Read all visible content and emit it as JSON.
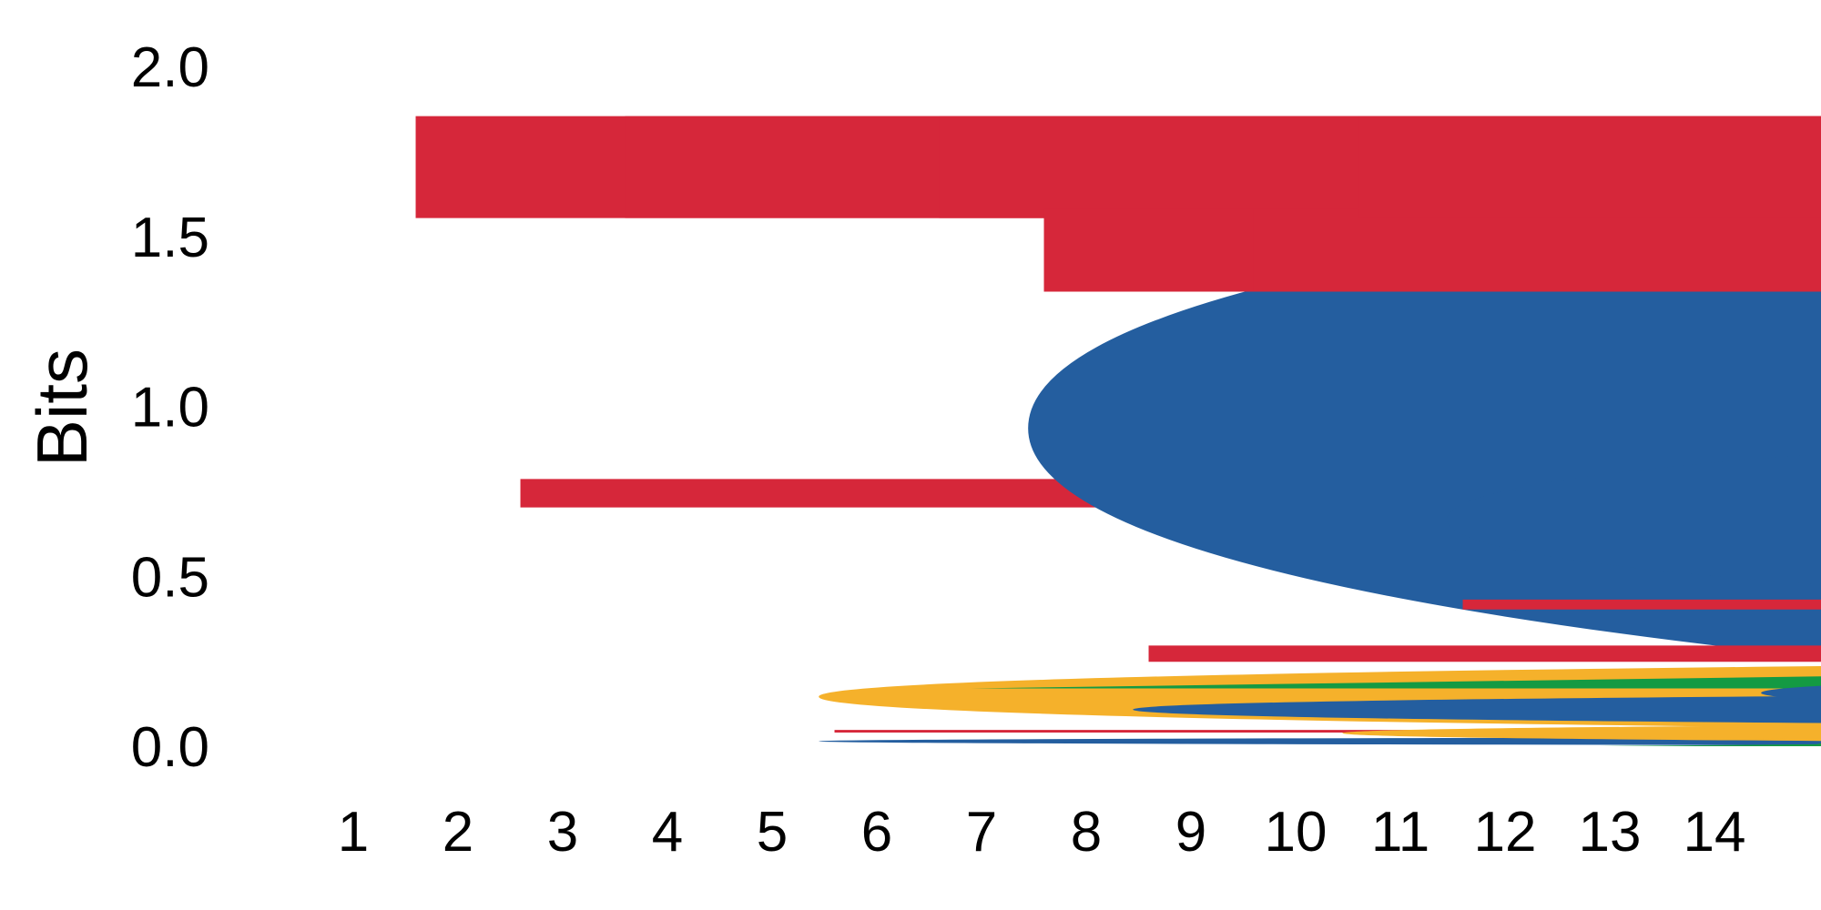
{
  "chart_data": {
    "type": "sequence-logo",
    "ylabel": "Bits",
    "xlabel": "",
    "ylim": [
      0,
      2
    ],
    "y_ticks": [
      "0.0",
      "0.5",
      "1.0",
      "1.5",
      "2.0"
    ],
    "y_tick_values": [
      0,
      0.5,
      1.0,
      1.5,
      2.0
    ],
    "grid": false,
    "colors": {
      "A": "#149a43",
      "C": "#245e9f",
      "G": "#f5b12b",
      "T": "#d6273a"
    },
    "positions": [
      {
        "label": "1",
        "stack": [
          {
            "base": "T",
            "bits": 1.94
          }
        ]
      },
      {
        "label": "2",
        "stack": [
          {
            "base": "C",
            "bits": 0.03
          },
          {
            "base": "G",
            "bits": 0.24
          },
          {
            "base": "T",
            "bits": 0.54
          }
        ]
      },
      {
        "label": "3",
        "stack": [
          {
            "base": "T",
            "bits": 1.94
          }
        ]
      },
      {
        "label": "4",
        "stack": [
          {
            "base": "C",
            "bits": 1.94
          }
        ]
      },
      {
        "label": "5",
        "stack": [
          {
            "base": "T",
            "bits": 0.05
          },
          {
            "base": "C",
            "bits": 0.12
          },
          {
            "base": "A",
            "bits": 0.11
          }
        ]
      },
      {
        "label": "6",
        "stack": [
          {
            "base": "T",
            "bits": 1.94
          }
        ]
      },
      {
        "label": "7",
        "stack": [
          {
            "base": "G",
            "bits": 0.08
          },
          {
            "base": "T",
            "bits": 1.57
          }
        ]
      },
      {
        "label": "8",
        "stack": [
          {
            "base": "T",
            "bits": 0.31
          },
          {
            "base": "C",
            "bits": 0.74
          }
        ]
      },
      {
        "label": "9",
        "stack": [
          {
            "base": "G",
            "bits": 0.08
          },
          {
            "base": "T",
            "bits": 1.57
          }
        ]
      },
      {
        "label": "10",
        "stack": [
          {
            "base": "T",
            "bits": 1.94
          }
        ]
      },
      {
        "label": "11",
        "stack": [
          {
            "base": "A",
            "bits": 0.07
          },
          {
            "base": "C",
            "bits": 0.18
          },
          {
            "base": "T",
            "bits": 0.19
          }
        ]
      },
      {
        "label": "12",
        "stack": [
          {
            "base": "G",
            "bits": 1.94
          }
        ]
      },
      {
        "label": "13",
        "stack": [
          {
            "base": "A",
            "bits": 1.94
          }
        ]
      },
      {
        "label": "14",
        "stack": [
          {
            "base": "A",
            "bits": 0.08
          },
          {
            "base": "G",
            "bits": 1.57
          }
        ]
      }
    ]
  }
}
